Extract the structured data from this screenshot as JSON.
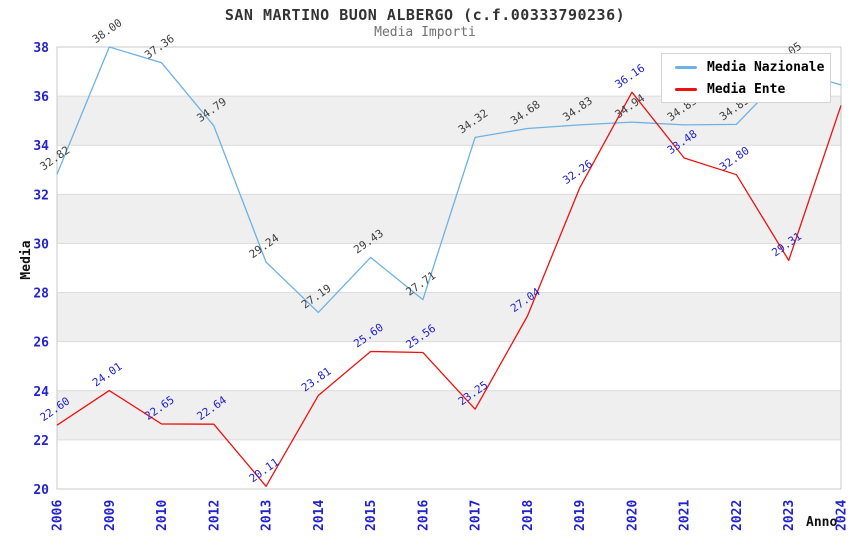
{
  "chart_data": {
    "type": "line",
    "title": "SAN MARTINO BUON ALBERGO (c.f.00333790236)",
    "subtitle": "Media Importi",
    "xlabel": "Anno",
    "ylabel": "Media",
    "categories": [
      "2006",
      "2009",
      "2010",
      "2012",
      "2013",
      "2014",
      "2015",
      "2016",
      "2017",
      "2018",
      "2019",
      "2020",
      "2021",
      "2022",
      "2023",
      "2024"
    ],
    "series": [
      {
        "name": "Media Nazionale",
        "color": "#6fb1e4",
        "label_color": "#3f3f3f",
        "values": [
          32.82,
          38.0,
          37.36,
          34.79,
          29.24,
          27.19,
          29.43,
          27.71,
          34.32,
          34.68,
          34.83,
          34.94,
          34.83,
          34.85,
          37.05,
          36.46
        ]
      },
      {
        "name": "Media Ente",
        "color": "#ee1111",
        "label_color": "#2323cc",
        "values": [
          22.6,
          24.01,
          22.65,
          22.64,
          20.11,
          23.81,
          25.6,
          25.56,
          23.25,
          27.04,
          32.26,
          36.16,
          33.48,
          32.8,
          29.31,
          35.62
        ]
      }
    ],
    "ylim": [
      20,
      38
    ],
    "ytick_step": 2,
    "yticks": [
      20,
      22,
      24,
      26,
      28,
      30,
      32,
      34,
      36,
      38
    ],
    "grid": "horizontal-only",
    "band_colors": [
      "#ffffff",
      "#efefef"
    ],
    "gridline_color": "#dcdcdc",
    "frame_color": "#c8c8c8",
    "axis_tick_color": "#2323cc",
    "legend_position": "top-right",
    "value_label_format": "2-decimals",
    "value_label_angle_deg": -35
  }
}
